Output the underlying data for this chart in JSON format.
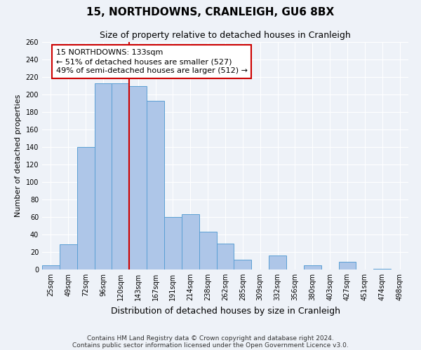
{
  "title": "15, NORTHDOWNS, CRANLEIGH, GU6 8BX",
  "subtitle": "Size of property relative to detached houses in Cranleigh",
  "xlabel": "Distribution of detached houses by size in Cranleigh",
  "ylabel": "Number of detached properties",
  "categories": [
    "25sqm",
    "49sqm",
    "72sqm",
    "96sqm",
    "120sqm",
    "143sqm",
    "167sqm",
    "191sqm",
    "214sqm",
    "238sqm",
    "262sqm",
    "285sqm",
    "309sqm",
    "332sqm",
    "356sqm",
    "380sqm",
    "403sqm",
    "427sqm",
    "451sqm",
    "474sqm",
    "498sqm"
  ],
  "values": [
    5,
    29,
    140,
    213,
    213,
    210,
    193,
    60,
    63,
    43,
    30,
    11,
    0,
    16,
    0,
    5,
    0,
    9,
    0,
    1,
    0
  ],
  "bar_color": "#aec6e8",
  "bar_edge_color": "#5a9fd4",
  "vline_x": 4.5,
  "vline_color": "#cc0000",
  "annotation_title": "15 NORTHDOWNS: 133sqm",
  "annotation_line1": "← 51% of detached houses are smaller (527)",
  "annotation_line2": "49% of semi-detached houses are larger (512) →",
  "annotation_box_edge": "#cc0000",
  "ylim": [
    0,
    260
  ],
  "yticks": [
    0,
    20,
    40,
    60,
    80,
    100,
    120,
    140,
    160,
    180,
    200,
    220,
    240,
    260
  ],
  "footnote1": "Contains HM Land Registry data © Crown copyright and database right 2024.",
  "footnote2": "Contains public sector information licensed under the Open Government Licence v3.0.",
  "bg_color": "#eef2f8",
  "plot_bg_color": "#eef2f8",
  "grid_color": "#ffffff",
  "title_fontsize": 11,
  "subtitle_fontsize": 9,
  "xlabel_fontsize": 9,
  "ylabel_fontsize": 8,
  "tick_fontsize": 7,
  "footnote_fontsize": 6.5,
  "annotation_fontsize": 8
}
